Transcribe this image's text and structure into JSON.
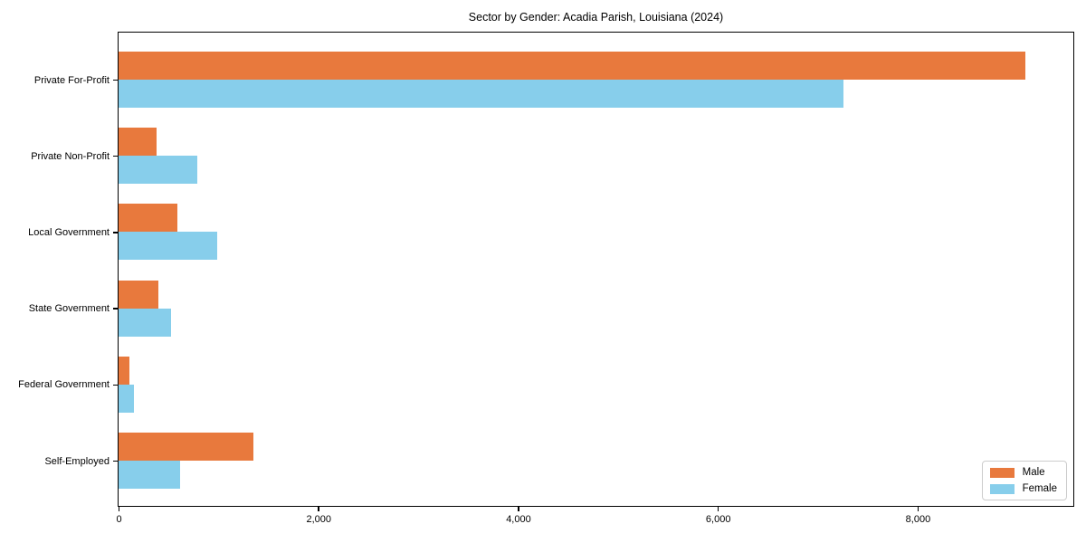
{
  "chart_data": {
    "type": "bar",
    "orientation": "horizontal",
    "title": "Sector by Gender: Acadia Parish, Louisiana (2024)",
    "categories": [
      "Private For-Profit",
      "Private Non-Profit",
      "Local Government",
      "State Government",
      "Federal Government",
      "Self-Employed"
    ],
    "series": [
      {
        "name": "Male",
        "color": "#e8793d",
        "values": [
          9080,
          380,
          590,
          400,
          110,
          1350
        ]
      },
      {
        "name": "Female",
        "color": "#87ceeb",
        "values": [
          7260,
          790,
          990,
          530,
          150,
          620
        ]
      }
    ],
    "xlabel": "",
    "ylabel": "",
    "xlim": [
      0,
      9550
    ],
    "x_ticks": [
      0,
      2000,
      4000,
      6000,
      8000
    ],
    "x_tick_labels": [
      "0",
      "2,000",
      "4,000",
      "6,000",
      "8,000"
    ],
    "grid": false,
    "legend_position": "lower right"
  }
}
